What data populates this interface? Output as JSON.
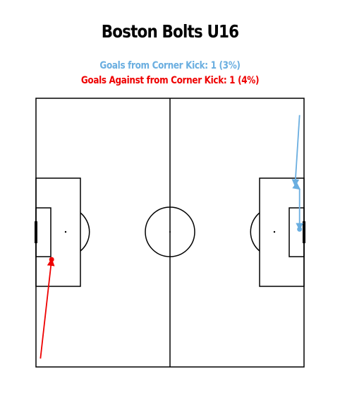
{
  "title": "Boston Bolts U16",
  "subtitle_for": "Goals from Corner Kick: 1 (3%)",
  "subtitle_against": "Goals Against from Corner Kick: 1 (4%)",
  "colors": {
    "for": "#6aaee0",
    "against": "#ee0000",
    "lines": "#000000"
  },
  "chart_data": {
    "type": "scatter",
    "pitch": {
      "length": 120,
      "width": 80
    },
    "series": [
      {
        "team": "for",
        "events": [
          {
            "type": "corner",
            "x": 118,
            "y": 75
          },
          {
            "type": "pass",
            "x": 116,
            "y": 54
          },
          {
            "type": "carry",
            "x": 118,
            "y": 53
          },
          {
            "type": "shot_goal",
            "x": 118,
            "y": 41
          }
        ]
      },
      {
        "team": "against",
        "events": [
          {
            "type": "corner",
            "x": 2,
            "y": 2.5
          },
          {
            "type": "shot_goal",
            "x": 7,
            "y": 32
          }
        ]
      }
    ]
  }
}
